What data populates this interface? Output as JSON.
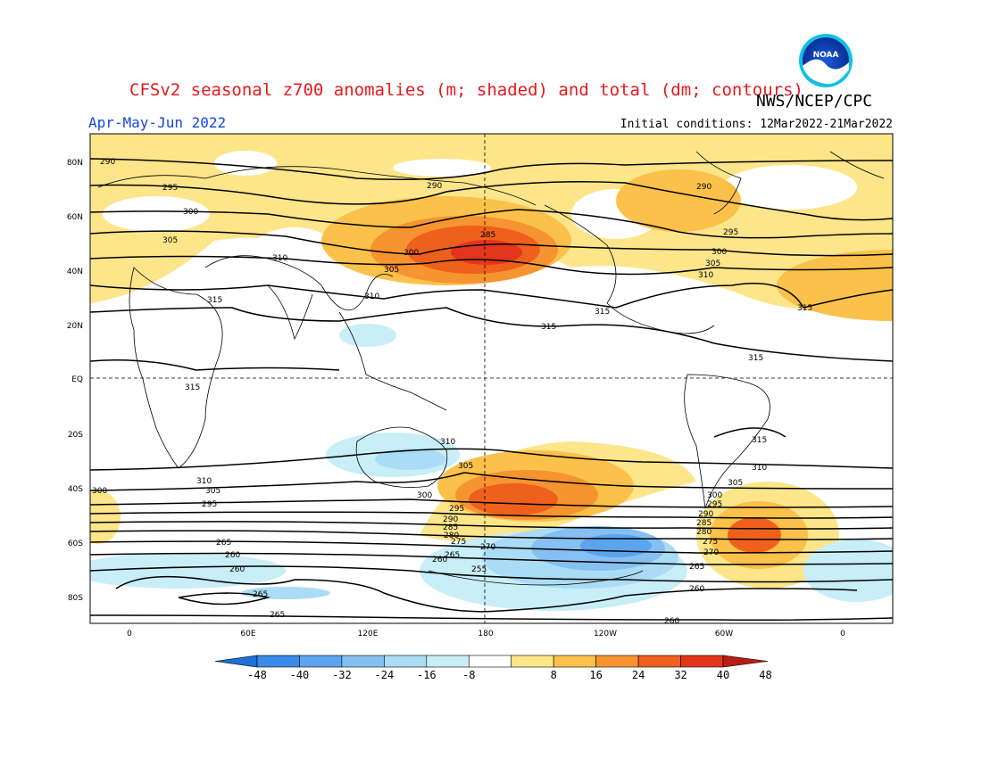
{
  "title": "CFSv2 seasonal z700 anomalies (m; shaded) and total (dm; contours)",
  "agency": "NWS/NCEP/CPC",
  "period": "Apr-May-Jun 2022",
  "initial_conditions": "Initial conditions: 12Mar2022-21Mar2022",
  "logo_text": "NOAA",
  "lat_labels": [
    "80N",
    "60N",
    "40N",
    "20N",
    "EQ",
    "20S",
    "40S",
    "60S",
    "80S"
  ],
  "lon_labels": [
    "0",
    "60E",
    "120E",
    "180",
    "120W",
    "60W",
    "0"
  ],
  "colorbar": {
    "ticks": [
      "-48",
      "-40",
      "-32",
      "-24",
      "-16",
      "-8",
      "8",
      "16",
      "24",
      "32",
      "40",
      "48"
    ],
    "colors": [
      "#1e6fd9",
      "#3a8ae8",
      "#5ba5ee",
      "#86c0f3",
      "#aadcf5",
      "#c8eef8",
      "#ffffff",
      "#fde58a",
      "#fbc14a",
      "#f79432",
      "#f0601d",
      "#e2361a",
      "#b81c14"
    ]
  },
  "contour_labels": [
    "290",
    "295",
    "300",
    "305",
    "310",
    "315",
    "265",
    "260",
    "255",
    "270",
    "275",
    "280",
    "285"
  ]
}
